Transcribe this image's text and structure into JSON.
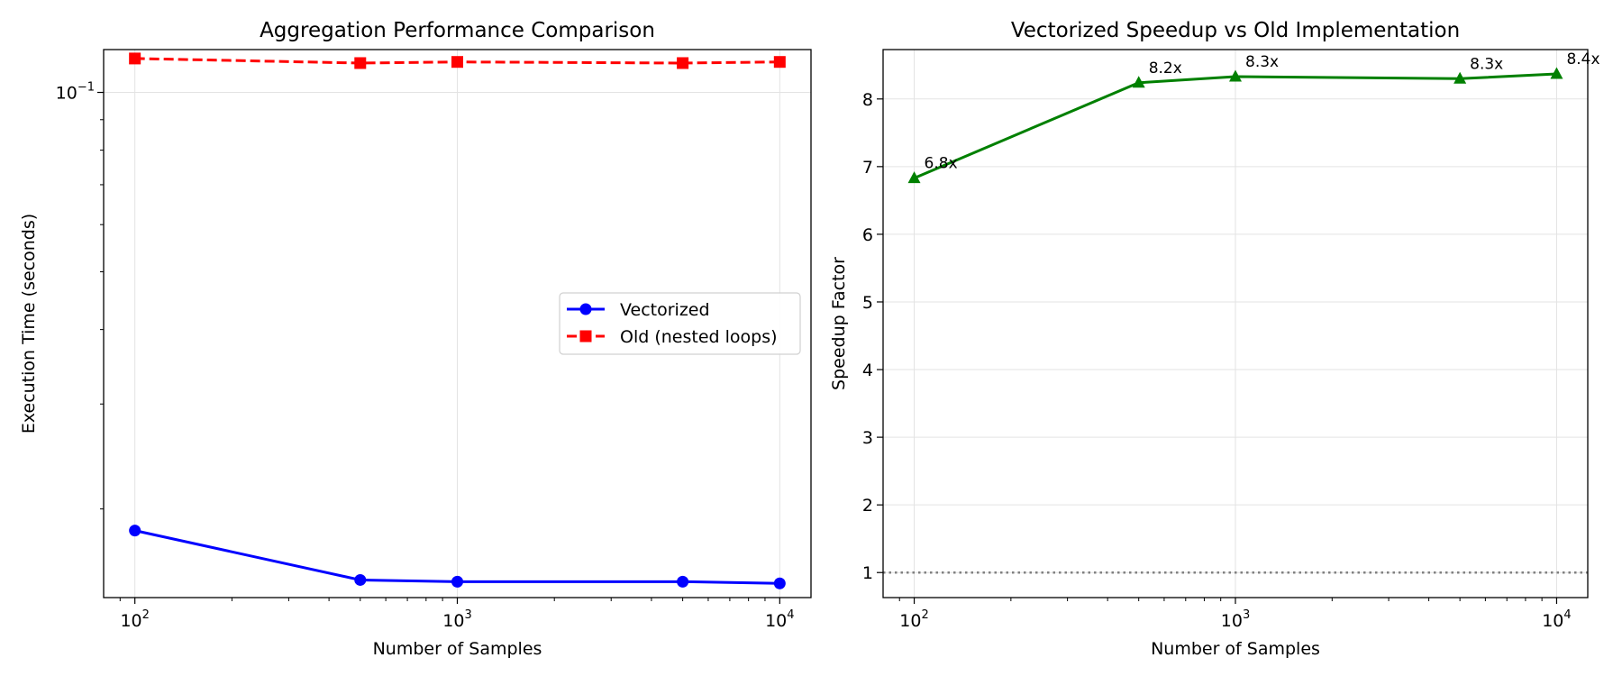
{
  "chart_data": [
    {
      "type": "line",
      "title": "Aggregation Performance Comparison",
      "xlabel": "Number of Samples",
      "ylabel": "Execution Time (seconds)",
      "xscale": "log",
      "yscale": "log",
      "xlim": [
        80,
        12500
      ],
      "ylim": [
        0.0142,
        0.118
      ],
      "x": [
        100,
        500,
        1000,
        5000,
        10000
      ],
      "x_ticks": [
        {
          "value": 100,
          "base": "10",
          "exp": "2"
        },
        {
          "value": 1000,
          "base": "10",
          "exp": "3"
        },
        {
          "value": 10000,
          "base": "10",
          "exp": "4"
        }
      ],
      "y_ticks": [
        {
          "value": 0.1,
          "base": "10",
          "exp": "−1"
        }
      ],
      "grid": true,
      "legend_position": "center-right",
      "series": [
        {
          "name": "Vectorized",
          "values": [
            0.0184,
            0.0152,
            0.0151,
            0.0151,
            0.015
          ],
          "color": "#0000ff",
          "marker": "circle",
          "linestyle": "solid"
        },
        {
          "name": "Old (nested loops)",
          "values": [
            0.114,
            0.112,
            0.1125,
            0.112,
            0.1125
          ],
          "color": "#ff0000",
          "marker": "square",
          "linestyle": "dashed"
        }
      ]
    },
    {
      "type": "line",
      "title": "Vectorized Speedup vs Old Implementation",
      "xlabel": "Number of Samples",
      "ylabel": "Speedup Factor",
      "xscale": "log",
      "xlim": [
        80,
        12500
      ],
      "ylim": [
        0.63,
        8.73
      ],
      "x": [
        100,
        500,
        1000,
        5000,
        10000
      ],
      "x_ticks": [
        {
          "value": 100,
          "base": "10",
          "exp": "2"
        },
        {
          "value": 1000,
          "base": "10",
          "exp": "3"
        },
        {
          "value": 10000,
          "base": "10",
          "exp": "4"
        }
      ],
      "y_ticks": [
        1,
        2,
        3,
        4,
        5,
        6,
        7,
        8
      ],
      "grid": true,
      "reference_line": {
        "y": 1,
        "color": "#808080",
        "style": "dotted"
      },
      "series": [
        {
          "values": [
            6.83,
            8.24,
            8.33,
            8.3,
            8.37
          ],
          "color": "#008000",
          "marker": "triangle",
          "linestyle": "solid"
        }
      ],
      "data_labels": [
        "6.8x",
        "8.2x",
        "8.3x",
        "8.3x",
        "8.4x"
      ]
    }
  ]
}
